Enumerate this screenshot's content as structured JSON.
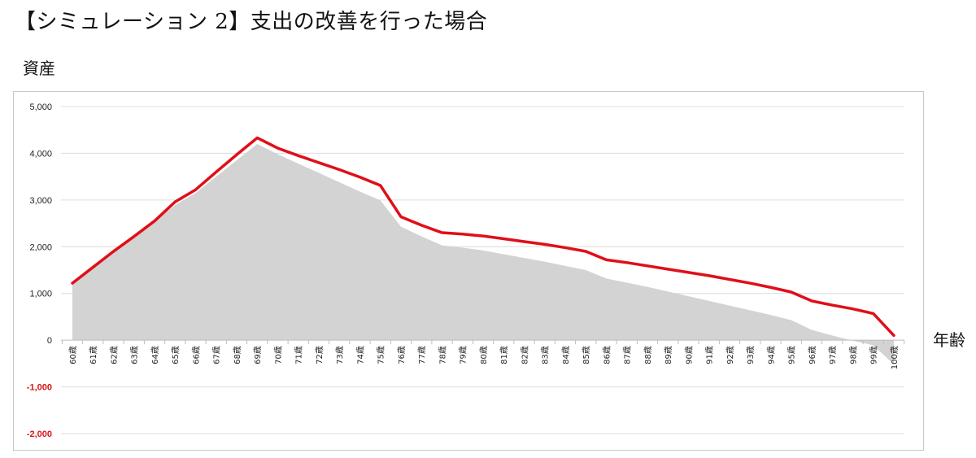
{
  "page": {
    "title": "【シミュレーション 2】支出の改善を行った場合",
    "ylabel": "資産",
    "xlabel": "年齢"
  },
  "chart_data": {
    "type": "area",
    "categories": [
      "60歳",
      "61歳",
      "62歳",
      "63歳",
      "64歳",
      "65歳",
      "66歳",
      "67歳",
      "68歳",
      "69歳",
      "70歳",
      "71歳",
      "72歳",
      "73歳",
      "74歳",
      "75歳",
      "76歳",
      "77歳",
      "78歳",
      "79歳",
      "80歳",
      "81歳",
      "82歳",
      "83歳",
      "84歳",
      "85歳",
      "86歳",
      "87歳",
      "88歳",
      "89歳",
      "90歳",
      "91歳",
      "92歳",
      "93歳",
      "94歳",
      "95歳",
      "96歳",
      "97歳",
      "98歳",
      "99歳",
      "100歳"
    ],
    "series": [
      {
        "values": [
          1200,
          1540,
          1880,
          2210,
          2550,
          2890,
          3150,
          3500,
          3850,
          4200,
          3980,
          3780,
          3580,
          3380,
          3180,
          2990,
          2430,
          2220,
          2030,
          1980,
          1920,
          1840,
          1760,
          1680,
          1590,
          1500,
          1320,
          1230,
          1140,
          1040,
          940,
          840,
          740,
          640,
          540,
          430,
          220,
          100,
          -10,
          -110,
          -520
        ],
        "color": "#d3d3d3"
      },
      {
        "values": [
          1220,
          1560,
          1900,
          2220,
          2550,
          2960,
          3220,
          3600,
          3970,
          4330,
          4110,
          3950,
          3800,
          3650,
          3490,
          3310,
          2640,
          2460,
          2300,
          2270,
          2230,
          2170,
          2110,
          2050,
          1980,
          1900,
          1720,
          1660,
          1590,
          1520,
          1450,
          1380,
          1300,
          1220,
          1130,
          1030,
          840,
          750,
          670,
          570,
          100
        ],
        "color": "#e00f18"
      }
    ],
    "yticks": [
      "5,000",
      "4,000",
      "3,000",
      "2,000",
      "1,000",
      "0",
      "-1,000",
      "-2,000"
    ],
    "ylim": [
      -2000,
      5000
    ],
    "grid": true
  }
}
